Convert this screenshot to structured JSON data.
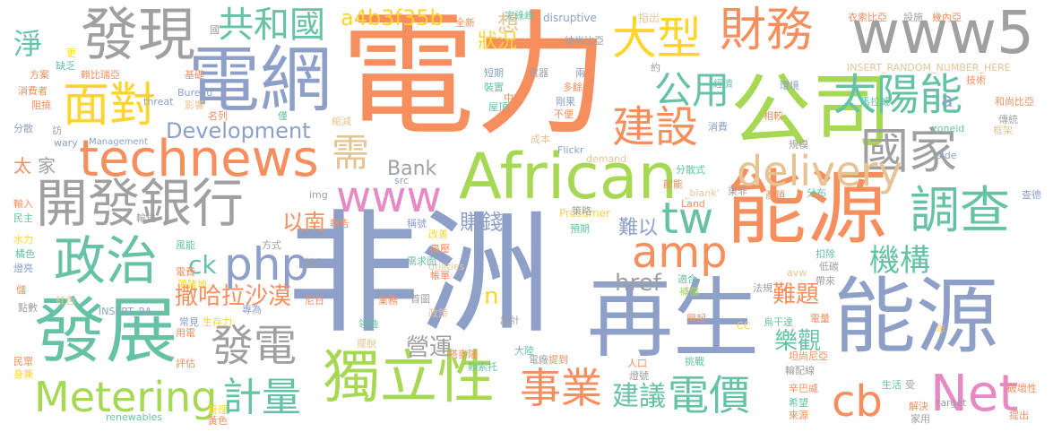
{
  "words": [
    {
      "text": "非洲",
      "cls": "c2"
    },
    {
      "text": "電力",
      "cls": "c1"
    },
    {
      "text": "能源",
      "cls": "c1"
    },
    {
      "text": "再生",
      "cls": "c2"
    },
    {
      "text": "能源",
      "cls": "c2"
    },
    {
      "text": "公司",
      "cls": "c4"
    },
    {
      "text": "電網",
      "cls": "c2"
    },
    {
      "text": "發現",
      "cls": "c5"
    },
    {
      "text": "African",
      "cls": "c4"
    },
    {
      "text": "technews",
      "cls": "c1"
    },
    {
      "text": "開發銀行",
      "cls": "c5"
    },
    {
      "text": "發展",
      "cls": "c3"
    },
    {
      "text": "獨立性",
      "cls": "c4"
    },
    {
      "text": "www5",
      "cls": "c5"
    },
    {
      "text": "財務",
      "cls": "c1"
    },
    {
      "text": "大型",
      "cls": "c8"
    },
    {
      "text": "共和國",
      "cls": "c3"
    },
    {
      "text": "面對",
      "cls": "c8"
    },
    {
      "text": "政治",
      "cls": "c3"
    },
    {
      "text": "調查",
      "cls": "c3"
    },
    {
      "text": "國家",
      "cls": "c5"
    },
    {
      "text": "太陽能",
      "cls": "c3"
    },
    {
      "text": "delivery",
      "cls": "c6"
    },
    {
      "text": "php",
      "cls": "c2"
    },
    {
      "text": "www",
      "cls": "c7"
    },
    {
      "text": "Metering",
      "cls": "c4"
    },
    {
      "text": "計量",
      "cls": "c3"
    },
    {
      "text": "事業",
      "cls": "c1"
    },
    {
      "text": "電價",
      "cls": "c3"
    },
    {
      "text": "Net",
      "cls": "c7"
    },
    {
      "text": "cb",
      "cls": "c1"
    },
    {
      "text": "amp",
      "cls": "c1"
    },
    {
      "text": "tw",
      "cls": "c3"
    },
    {
      "text": "建設",
      "cls": "c1"
    },
    {
      "text": "公用",
      "cls": "c3"
    },
    {
      "text": "發電",
      "cls": "c5"
    },
    {
      "text": "機構",
      "cls": "c3"
    },
    {
      "text": "需",
      "cls": "c6"
    },
    {
      "text": "a4b3f35b",
      "cls": "c8"
    },
    {
      "text": "Development",
      "cls": "c2"
    },
    {
      "text": "建議",
      "cls": "c3"
    },
    {
      "text": "撒哈拉沙漠",
      "cls": "c1"
    },
    {
      "text": "營運",
      "cls": "c5"
    },
    {
      "text": "樂觀",
      "cls": "c3"
    },
    {
      "text": "難題",
      "cls": "c1"
    },
    {
      "text": "淨",
      "cls": "c3"
    },
    {
      "text": "href",
      "cls": "c5"
    },
    {
      "text": "以南",
      "cls": "c1"
    },
    {
      "text": "賺錢",
      "cls": "c2"
    },
    {
      "text": "Bank",
      "cls": "c5"
    },
    {
      "text": "難以",
      "cls": "c2"
    },
    {
      "text": "狀況",
      "cls": "c8"
    },
    {
      "text": "家",
      "cls": "c5"
    },
    {
      "text": "太",
      "cls": "c1"
    },
    {
      "text": "ck",
      "cls": "c3"
    },
    {
      "text": "想",
      "cls": "c6"
    },
    {
      "text": "n",
      "cls": "c8"
    },
    {
      "text": "a",
      "cls": "c2"
    },
    {
      "text": "disruptive",
      "cls": "c2"
    },
    {
      "text": "INSERT_RANDOM_NUMBER_HERE",
      "cls": "c6"
    },
    {
      "text": "Management",
      "cls": "c2"
    },
    {
      "text": "threat",
      "cls": "c2"
    },
    {
      "text": "Bureau",
      "cls": "c2"
    },
    {
      "text": "Flickr",
      "cls": "c2"
    },
    {
      "text": "demand",
      "cls": "c6"
    },
    {
      "text": "Prosumer",
      "cls": "c8"
    },
    {
      "text": "utilities",
      "cls": "c6"
    },
    {
      "text": "zoneid",
      "cls": "c3"
    },
    {
      "text": "side",
      "cls": "c2"
    },
    {
      "text": "renewables",
      "cls": "c3"
    },
    {
      "text": "target",
      "cls": "c5"
    },
    {
      "text": "INSERT_RA",
      "cls": "c2"
    },
    {
      "text": "img",
      "cls": "c5"
    },
    {
      "text": "src",
      "cls": "c2"
    },
    {
      "text": "CC",
      "cls": "c8"
    },
    {
      "text": "wary",
      "cls": "c2"
    },
    {
      "text": "Land",
      "cls": "c1"
    },
    {
      "text": "_blank'",
      "cls": "c6"
    },
    {
      "text": "avw",
      "cls": "c6"
    },
    {
      "text": "全新",
      "cls": "c1"
    },
    {
      "text": "完綠嶸",
      "cls": "c3"
    },
    {
      "text": "指出",
      "cls": "c6"
    },
    {
      "text": "衣索比亞",
      "cls": "c1"
    },
    {
      "text": "設施",
      "cls": "c5"
    },
    {
      "text": "幾內亞",
      "cls": "c1"
    },
    {
      "text": "納米比亞",
      "cls": "c5"
    },
    {
      "text": "約",
      "cls": "c5"
    },
    {
      "text": "兩",
      "cls": "c2"
    },
    {
      "text": "技術",
      "cls": "c1"
    },
    {
      "text": "經濟",
      "cls": "c3"
    },
    {
      "text": "環境",
      "cls": "c2"
    },
    {
      "text": "馬拉威",
      "cls": "c3"
    },
    {
      "text": "和尚比亞",
      "cls": "c1"
    },
    {
      "text": "短期",
      "cls": "c2"
    },
    {
      "text": "電器",
      "cls": "c5"
    },
    {
      "text": "裝置",
      "cls": "c3"
    },
    {
      "text": "中非",
      "cls": "c1"
    },
    {
      "text": "多餘",
      "cls": "c1"
    },
    {
      "text": "剛果",
      "cls": "c2"
    },
    {
      "text": "不便",
      "cls": "c1"
    },
    {
      "text": "屋頂",
      "cls": "c3"
    },
    {
      "text": "消費",
      "cls": "c2"
    },
    {
      "text": "相較",
      "cls": "c1"
    },
    {
      "text": "規模",
      "cls": "c5"
    },
    {
      "text": "傳統",
      "cls": "c5"
    },
    {
      "text": "框架",
      "cls": "c6"
    },
    {
      "text": "分散式",
      "cls": "c3"
    },
    {
      "text": "節能",
      "cls": "c1"
    },
    {
      "text": "東非",
      "cls": "c5"
    },
    {
      "text": "產銷",
      "cls": "c1"
    },
    {
      "text": "分布",
      "cls": "c3"
    },
    {
      "text": "查德",
      "cls": "c2"
    },
    {
      "text": "成本",
      "cls": "c6"
    },
    {
      "text": "預期",
      "cls": "c3"
    },
    {
      "text": "方案",
      "cls": "c1"
    },
    {
      "text": "缺乏",
      "cls": "c3"
    },
    {
      "text": "更",
      "cls": "c8"
    },
    {
      "text": "賴比瑞亞",
      "cls": "c1"
    },
    {
      "text": "基礎",
      "cls": "c1"
    },
    {
      "text": "消費者",
      "cls": "c1"
    },
    {
      "text": "阻撓",
      "cls": "c1"
    },
    {
      "text": "影響",
      "cls": "c6"
    },
    {
      "text": "名列",
      "cls": "c1"
    },
    {
      "text": "縮減",
      "cls": "c6"
    },
    {
      "text": "僅",
      "cls": "c3"
    },
    {
      "text": "分散",
      "cls": "c2"
    },
    {
      "text": "訪",
      "cls": "c5"
    },
    {
      "text": "輸入",
      "cls": "c1"
    },
    {
      "text": "民主",
      "cls": "c3"
    },
    {
      "text": "水力",
      "cls": "c8"
    },
    {
      "text": "橘色",
      "cls": "c3"
    },
    {
      "text": "燈亮",
      "cls": "c2"
    },
    {
      "text": "儲",
      "cls": "c1"
    },
    {
      "text": "紅色",
      "cls": "c6"
    },
    {
      "text": "點數",
      "cls": "c5"
    },
    {
      "text": "民眾",
      "cls": "c1"
    },
    {
      "text": "身兼",
      "cls": "c8"
    },
    {
      "text": "管理",
      "cls": "c8"
    },
    {
      "text": "黃色",
      "cls": "c1"
    },
    {
      "text": "輸送",
      "cls": "c5"
    },
    {
      "text": "風能",
      "cls": "c3"
    },
    {
      "text": "電費",
      "cls": "c1"
    },
    {
      "text": "薄隆地",
      "cls": "c8"
    },
    {
      "text": "專為",
      "cls": "c2"
    },
    {
      "text": "尼日",
      "cls": "c1"
    },
    {
      "text": "常見",
      "cls": "c2"
    },
    {
      "text": "生存力",
      "cls": "c8"
    },
    {
      "text": "用電",
      "cls": "c1"
    },
    {
      "text": "評估",
      "cls": "c1"
    },
    {
      "text": "方式",
      "cls": "c5"
    },
    {
      "text": "報告",
      "cls": "c1"
    },
    {
      "text": "稱號",
      "cls": "c2"
    },
    {
      "text": "改善",
      "cls": "c8"
    },
    {
      "text": "高壓",
      "cls": "c1"
    },
    {
      "text": "較少",
      "cls": "c5"
    },
    {
      "text": "需求面",
      "cls": "c3"
    },
    {
      "text": "帳單",
      "cls": "c1"
    },
    {
      "text": "業務",
      "cls": "c1"
    },
    {
      "text": "首圖",
      "cls": "c5"
    },
    {
      "text": "政策",
      "cls": "c6"
    },
    {
      "text": "領袖",
      "cls": "c3"
    },
    {
      "text": "擺脫",
      "cls": "c6"
    },
    {
      "text": "設計",
      "cls": "c5"
    },
    {
      "text": "大陸",
      "cls": "c3"
    },
    {
      "text": "嗒麥隆",
      "cls": "c1"
    },
    {
      "text": "電廠",
      "cls": "c5"
    },
    {
      "text": "賴索托",
      "cls": "c3"
    },
    {
      "text": "提到",
      "cls": "c1"
    },
    {
      "text": "策略",
      "cls": "c5"
    },
    {
      "text": "適合",
      "cls": "c3"
    },
    {
      "text": "補償",
      "cls": "c4"
    },
    {
      "text": "法規",
      "cls": "c5"
    },
    {
      "text": "扣除",
      "cls": "c3"
    },
    {
      "text": "低碳",
      "cls": "c5"
    },
    {
      "text": "帶來",
      "cls": "c5"
    },
    {
      "text": "興起",
      "cls": "c1"
    },
    {
      "text": "烏干達",
      "cls": "c3"
    },
    {
      "text": "電量",
      "cls": "c1"
    },
    {
      "text": "坦尚尼亞",
      "cls": "c1"
    },
    {
      "text": "輪配線",
      "cls": "c5"
    },
    {
      "text": "年",
      "cls": "c8"
    },
    {
      "text": "人口",
      "cls": "c1"
    },
    {
      "text": "燈號",
      "cls": "c5"
    },
    {
      "text": "挑戰",
      "cls": "c3"
    },
    {
      "text": "辛巴威",
      "cls": "c1"
    },
    {
      "text": "希望",
      "cls": "c3"
    },
    {
      "text": "來源",
      "cls": "c1"
    },
    {
      "text": "生活",
      "cls": "c3"
    },
    {
      "text": "受",
      "cls": "c5"
    },
    {
      "text": "解決",
      "cls": "c1"
    },
    {
      "text": "家用",
      "cls": "c5"
    },
    {
      "text": "破壞性",
      "cls": "c1"
    },
    {
      "text": "提出",
      "cls": "c1"
    },
    {
      "text": "國",
      "cls": "c5"
    }
  ]
}
